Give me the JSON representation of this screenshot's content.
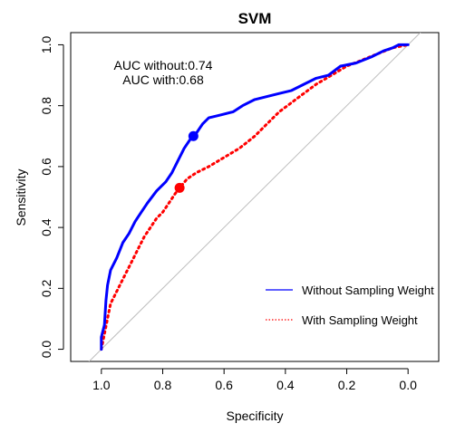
{
  "chart_data": {
    "type": "line",
    "title": "SVM",
    "xlabel": "Specificity",
    "ylabel": "Sensitivity",
    "xlim": [
      1.1,
      -0.1
    ],
    "ylim": [
      -0.04,
      1.04
    ],
    "x_reversed": true,
    "x_ticks": [
      1.0,
      0.8,
      0.6,
      0.4,
      0.2,
      0.0
    ],
    "x_tick_labels": [
      "1.0",
      "0.8",
      "0.6",
      "0.4",
      "0.2",
      "0.0"
    ],
    "y_ticks": [
      0.0,
      0.2,
      0.4,
      0.6,
      0.8,
      1.0
    ],
    "y_tick_labels": [
      "0.0",
      "0.2",
      "0.4",
      "0.6",
      "0.8",
      "1.0"
    ],
    "grid": false,
    "legend_position": "bottom-right",
    "annotations": [
      "AUC without:0.74",
      "AUC with:0.68"
    ],
    "reference_line": {
      "color": "#bebebe",
      "from": [
        1,
        0
      ],
      "to": [
        0,
        1
      ]
    },
    "series": [
      {
        "name": "Without Sampling Weight",
        "color": "#0000ff",
        "style": "solid",
        "points": [
          [
            1.0,
            0.0
          ],
          [
            1.0,
            0.04
          ],
          [
            0.99,
            0.08
          ],
          [
            0.985,
            0.16
          ],
          [
            0.98,
            0.21
          ],
          [
            0.97,
            0.26
          ],
          [
            0.95,
            0.3
          ],
          [
            0.93,
            0.35
          ],
          [
            0.91,
            0.38
          ],
          [
            0.89,
            0.42
          ],
          [
            0.87,
            0.45
          ],
          [
            0.85,
            0.48
          ],
          [
            0.82,
            0.52
          ],
          [
            0.79,
            0.55
          ],
          [
            0.77,
            0.58
          ],
          [
            0.75,
            0.62
          ],
          [
            0.73,
            0.66
          ],
          [
            0.71,
            0.69
          ],
          [
            0.69,
            0.71
          ],
          [
            0.67,
            0.74
          ],
          [
            0.65,
            0.76
          ],
          [
            0.61,
            0.77
          ],
          [
            0.57,
            0.78
          ],
          [
            0.54,
            0.8
          ],
          [
            0.5,
            0.82
          ],
          [
            0.46,
            0.83
          ],
          [
            0.42,
            0.84
          ],
          [
            0.38,
            0.85
          ],
          [
            0.34,
            0.87
          ],
          [
            0.3,
            0.89
          ],
          [
            0.26,
            0.9
          ],
          [
            0.22,
            0.93
          ],
          [
            0.17,
            0.94
          ],
          [
            0.12,
            0.96
          ],
          [
            0.08,
            0.98
          ],
          [
            0.05,
            0.99
          ],
          [
            0.03,
            1.0
          ],
          [
            0.0,
            1.0
          ]
        ],
        "highlight": [
          0.7,
          0.7
        ]
      },
      {
        "name": "With Sampling Weight",
        "color": "#ff0000",
        "style": "dotted",
        "points": [
          [
            1.0,
            0.0
          ],
          [
            0.99,
            0.05
          ],
          [
            0.98,
            0.1
          ],
          [
            0.97,
            0.15
          ],
          [
            0.96,
            0.17
          ],
          [
            0.94,
            0.21
          ],
          [
            0.92,
            0.25
          ],
          [
            0.9,
            0.29
          ],
          [
            0.88,
            0.33
          ],
          [
            0.86,
            0.37
          ],
          [
            0.84,
            0.4
          ],
          [
            0.82,
            0.43
          ],
          [
            0.8,
            0.45
          ],
          [
            0.78,
            0.48
          ],
          [
            0.76,
            0.51
          ],
          [
            0.745,
            0.53
          ],
          [
            0.72,
            0.56
          ],
          [
            0.69,
            0.58
          ],
          [
            0.65,
            0.6
          ],
          [
            0.6,
            0.63
          ],
          [
            0.55,
            0.66
          ],
          [
            0.5,
            0.7
          ],
          [
            0.46,
            0.74
          ],
          [
            0.42,
            0.78
          ],
          [
            0.38,
            0.81
          ],
          [
            0.34,
            0.84
          ],
          [
            0.3,
            0.87
          ],
          [
            0.25,
            0.9
          ],
          [
            0.2,
            0.93
          ],
          [
            0.15,
            0.95
          ],
          [
            0.1,
            0.97
          ],
          [
            0.05,
            0.99
          ],
          [
            0.0,
            1.0
          ]
        ],
        "highlight": [
          0.745,
          0.53
        ]
      }
    ]
  }
}
